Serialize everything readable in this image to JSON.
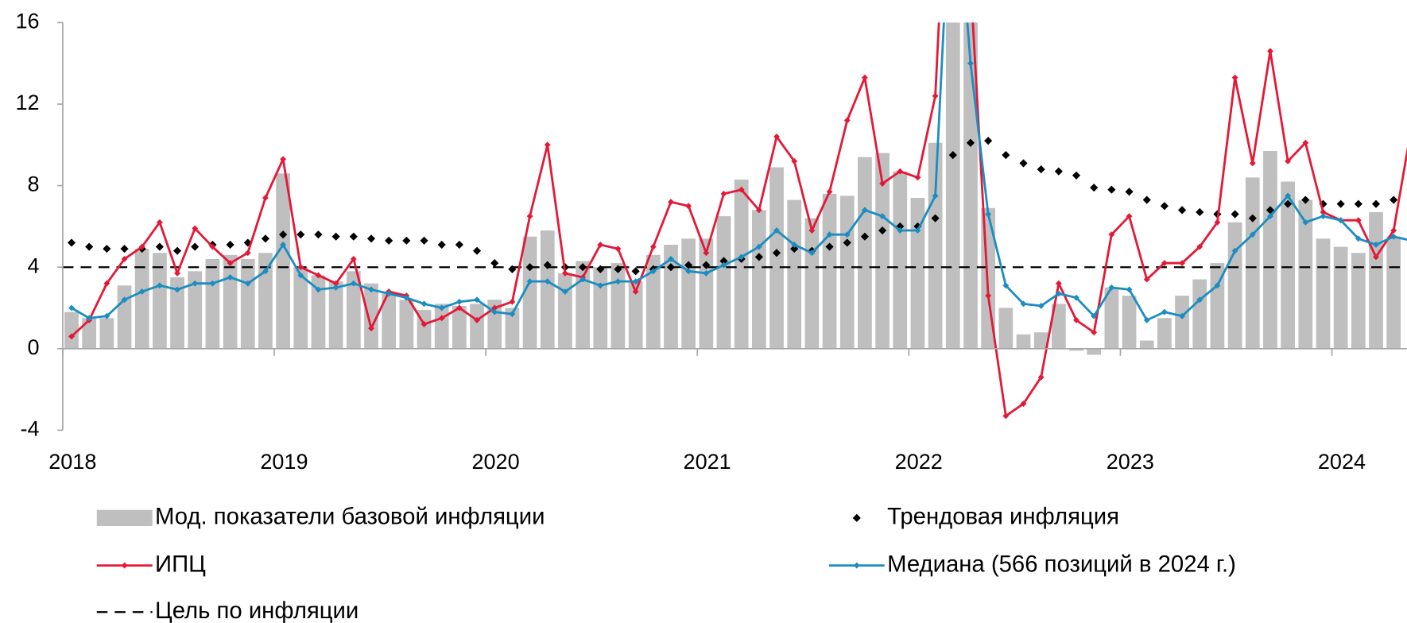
{
  "chart_data": {
    "type": "combo",
    "categories": [
      null,
      null,
      null,
      null,
      null,
      null,
      null,
      null,
      null,
      null,
      null,
      null,
      null,
      null,
      null,
      null,
      null,
      null,
      null,
      null,
      null,
      null,
      null,
      null,
      null,
      null,
      null,
      null,
      null,
      null,
      null,
      null,
      null,
      null,
      null,
      null,
      null,
      null,
      null,
      null,
      null,
      null,
      null,
      null,
      null,
      null,
      null,
      null,
      null,
      null,
      null,
      null,
      null,
      null,
      null,
      null,
      null,
      null,
      null,
      null,
      null,
      null,
      null,
      null,
      null,
      null,
      null,
      null,
      null,
      null,
      null,
      null,
      null,
      null,
      null,
      null,
      null
    ],
    "ylim": [
      -4,
      16
    ],
    "yticks": [
      -4,
      0,
      4,
      8,
      12,
      16
    ],
    "xticks": [
      2018,
      2019,
      2020,
      2021,
      2022,
      2023,
      2024
    ],
    "legend": "bottom",
    "series": [
      {
        "name": "Мод. показатели базовой инфляции",
        "style": "bar",
        "color": "#bfbfbf",
        "values": [
          1.8,
          1.5,
          1.5,
          3.1,
          4.9,
          4.7,
          3.5,
          3.8,
          4.4,
          4.6,
          4.4,
          4.7,
          8.6,
          4.0,
          3.6,
          3.3,
          3.8,
          3.2,
          2.7,
          2.4,
          1.9,
          2.2,
          2.1,
          2.2,
          2.4,
          2.0,
          5.5,
          5.8,
          3.7,
          4.3,
          4.0,
          4.2,
          3.3,
          4.6,
          5.1,
          5.4,
          5.4,
          6.5,
          8.3,
          6.8,
          8.9,
          7.3,
          6.4,
          7.6,
          7.5,
          9.4,
          9.6,
          8.7,
          7.4,
          10.1,
          30,
          18,
          6.9,
          2.0,
          0.7,
          0.8,
          2.2,
          -0.1,
          -0.3,
          3.0,
          2.6,
          0.4,
          1.5,
          2.6,
          3.4,
          4.2,
          6.2,
          8.4,
          9.7,
          8.2,
          7.3,
          5.4,
          5.0,
          4.7,
          6.7,
          5.5,
          null
        ]
      },
      {
        "name": "Трендовая инфляция",
        "style": "dots",
        "color": "#000000",
        "values": [
          5.2,
          5.0,
          4.9,
          4.9,
          4.9,
          5.0,
          4.8,
          5.0,
          5.1,
          5.1,
          5.2,
          5.4,
          5.6,
          5.6,
          5.6,
          5.5,
          5.5,
          5.4,
          5.3,
          5.3,
          5.3,
          5.1,
          5.1,
          4.8,
          4.2,
          3.9,
          4.0,
          4.1,
          4.0,
          4.0,
          3.9,
          3.9,
          3.8,
          3.9,
          4.0,
          4.1,
          4.1,
          4.3,
          4.4,
          4.5,
          4.7,
          4.9,
          4.8,
          5.0,
          5.2,
          5.5,
          5.8,
          6.0,
          6.0,
          6.4,
          9.5,
          10.1,
          10.2,
          9.5,
          9.1,
          8.8,
          8.7,
          8.5,
          7.9,
          7.8,
          7.7,
          7.3,
          7.0,
          6.8,
          6.7,
          6.6,
          6.6,
          6.4,
          6.8,
          7.1,
          7.3,
          7.1,
          7.1,
          7.1,
          7.1,
          7.3,
          null
        ]
      },
      {
        "name": "ИПЦ",
        "style": "line",
        "color": "#e31937",
        "values": [
          0.6,
          1.4,
          3.2,
          4.4,
          5.0,
          6.2,
          3.7,
          5.9,
          5.0,
          4.2,
          4.7,
          7.4,
          9.3,
          4.0,
          3.6,
          3.2,
          4.4,
          1.0,
          2.8,
          2.6,
          1.2,
          1.5,
          2.0,
          1.4,
          2.0,
          2.3,
          6.5,
          10.0,
          3.7,
          3.5,
          5.1,
          4.9,
          2.8,
          5.0,
          7.2,
          7.0,
          4.7,
          7.6,
          7.8,
          6.8,
          10.4,
          9.2,
          5.8,
          7.7,
          11.2,
          13.3,
          8.1,
          8.7,
          8.4,
          12.4,
          30,
          18,
          2.6,
          -3.3,
          -2.7,
          -1.4,
          3.2,
          1.4,
          0.8,
          5.6,
          6.5,
          3.4,
          4.2,
          4.2,
          5.0,
          6.2,
          13.3,
          9.1,
          14.6,
          9.2,
          10.1,
          6.7,
          6.3,
          6.3,
          4.5,
          5.8,
          10.8
        ]
      },
      {
        "name": "Медиана (566 позиций в 2024 г.)",
        "style": "line",
        "color": "#1b8dc1",
        "values": [
          2.0,
          1.5,
          1.6,
          2.4,
          2.8,
          3.1,
          2.9,
          3.2,
          3.2,
          3.5,
          3.2,
          3.8,
          5.1,
          3.6,
          2.9,
          3.0,
          3.2,
          2.9,
          2.7,
          2.5,
          2.2,
          2.0,
          2.3,
          2.4,
          1.8,
          1.7,
          3.3,
          3.3,
          2.8,
          3.4,
          3.1,
          3.3,
          3.3,
          3.8,
          4.4,
          3.8,
          3.7,
          4.1,
          4.5,
          5.0,
          5.8,
          5.1,
          4.7,
          5.6,
          5.6,
          6.8,
          6.5,
          5.8,
          5.8,
          7.5,
          25,
          14,
          6.6,
          3.1,
          2.2,
          2.1,
          2.7,
          2.5,
          1.6,
          3.0,
          2.9,
          1.4,
          1.8,
          1.6,
          2.4,
          3.1,
          4.8,
          5.6,
          6.5,
          7.5,
          6.2,
          6.5,
          6.3,
          5.4,
          5.1,
          5.5,
          5.3
        ]
      }
    ],
    "target": {
      "name": "Цель по инфляции",
      "value": 4,
      "color": "#000000"
    }
  }
}
